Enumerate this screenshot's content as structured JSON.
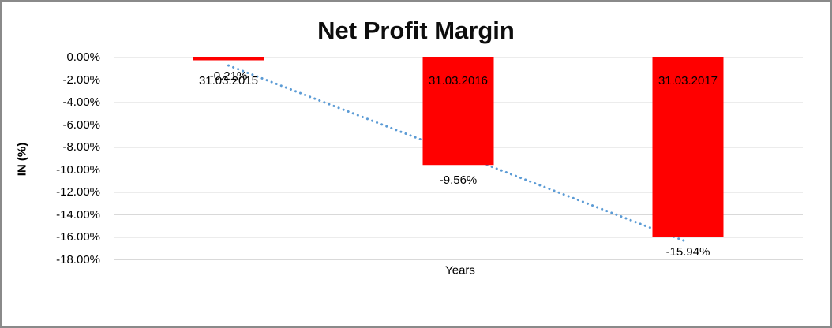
{
  "chart_data": {
    "type": "bar",
    "title": "Net Profit Margin",
    "xlabel": "Years",
    "ylabel": "IN (%)",
    "categories": [
      "31.03.2015",
      "31.03.2016",
      "31.03.2017"
    ],
    "values": [
      -0.21,
      -9.56,
      -15.94
    ],
    "data_labels": [
      "-0.21%",
      "-9.56%",
      "-15.94%"
    ],
    "yticks": [
      "0.00%",
      "-2.00%",
      "-4.00%",
      "-6.00%",
      "-8.00%",
      "-10.00%",
      "-12.00%",
      "-14.00%",
      "-16.00%",
      "-18.00%"
    ],
    "ytick_values": [
      0,
      -2,
      -4,
      -6,
      -8,
      -10,
      -12,
      -14,
      -16,
      -18
    ],
    "ylim": [
      0,
      -18
    ],
    "grid": true,
    "legend": "none",
    "bar_color": "#FF0000",
    "gridline_color": "#D9D9D9",
    "text_color": "#000000",
    "trendline": {
      "type": "linear",
      "style": "dotted",
      "color": "#5B9BD5"
    }
  }
}
